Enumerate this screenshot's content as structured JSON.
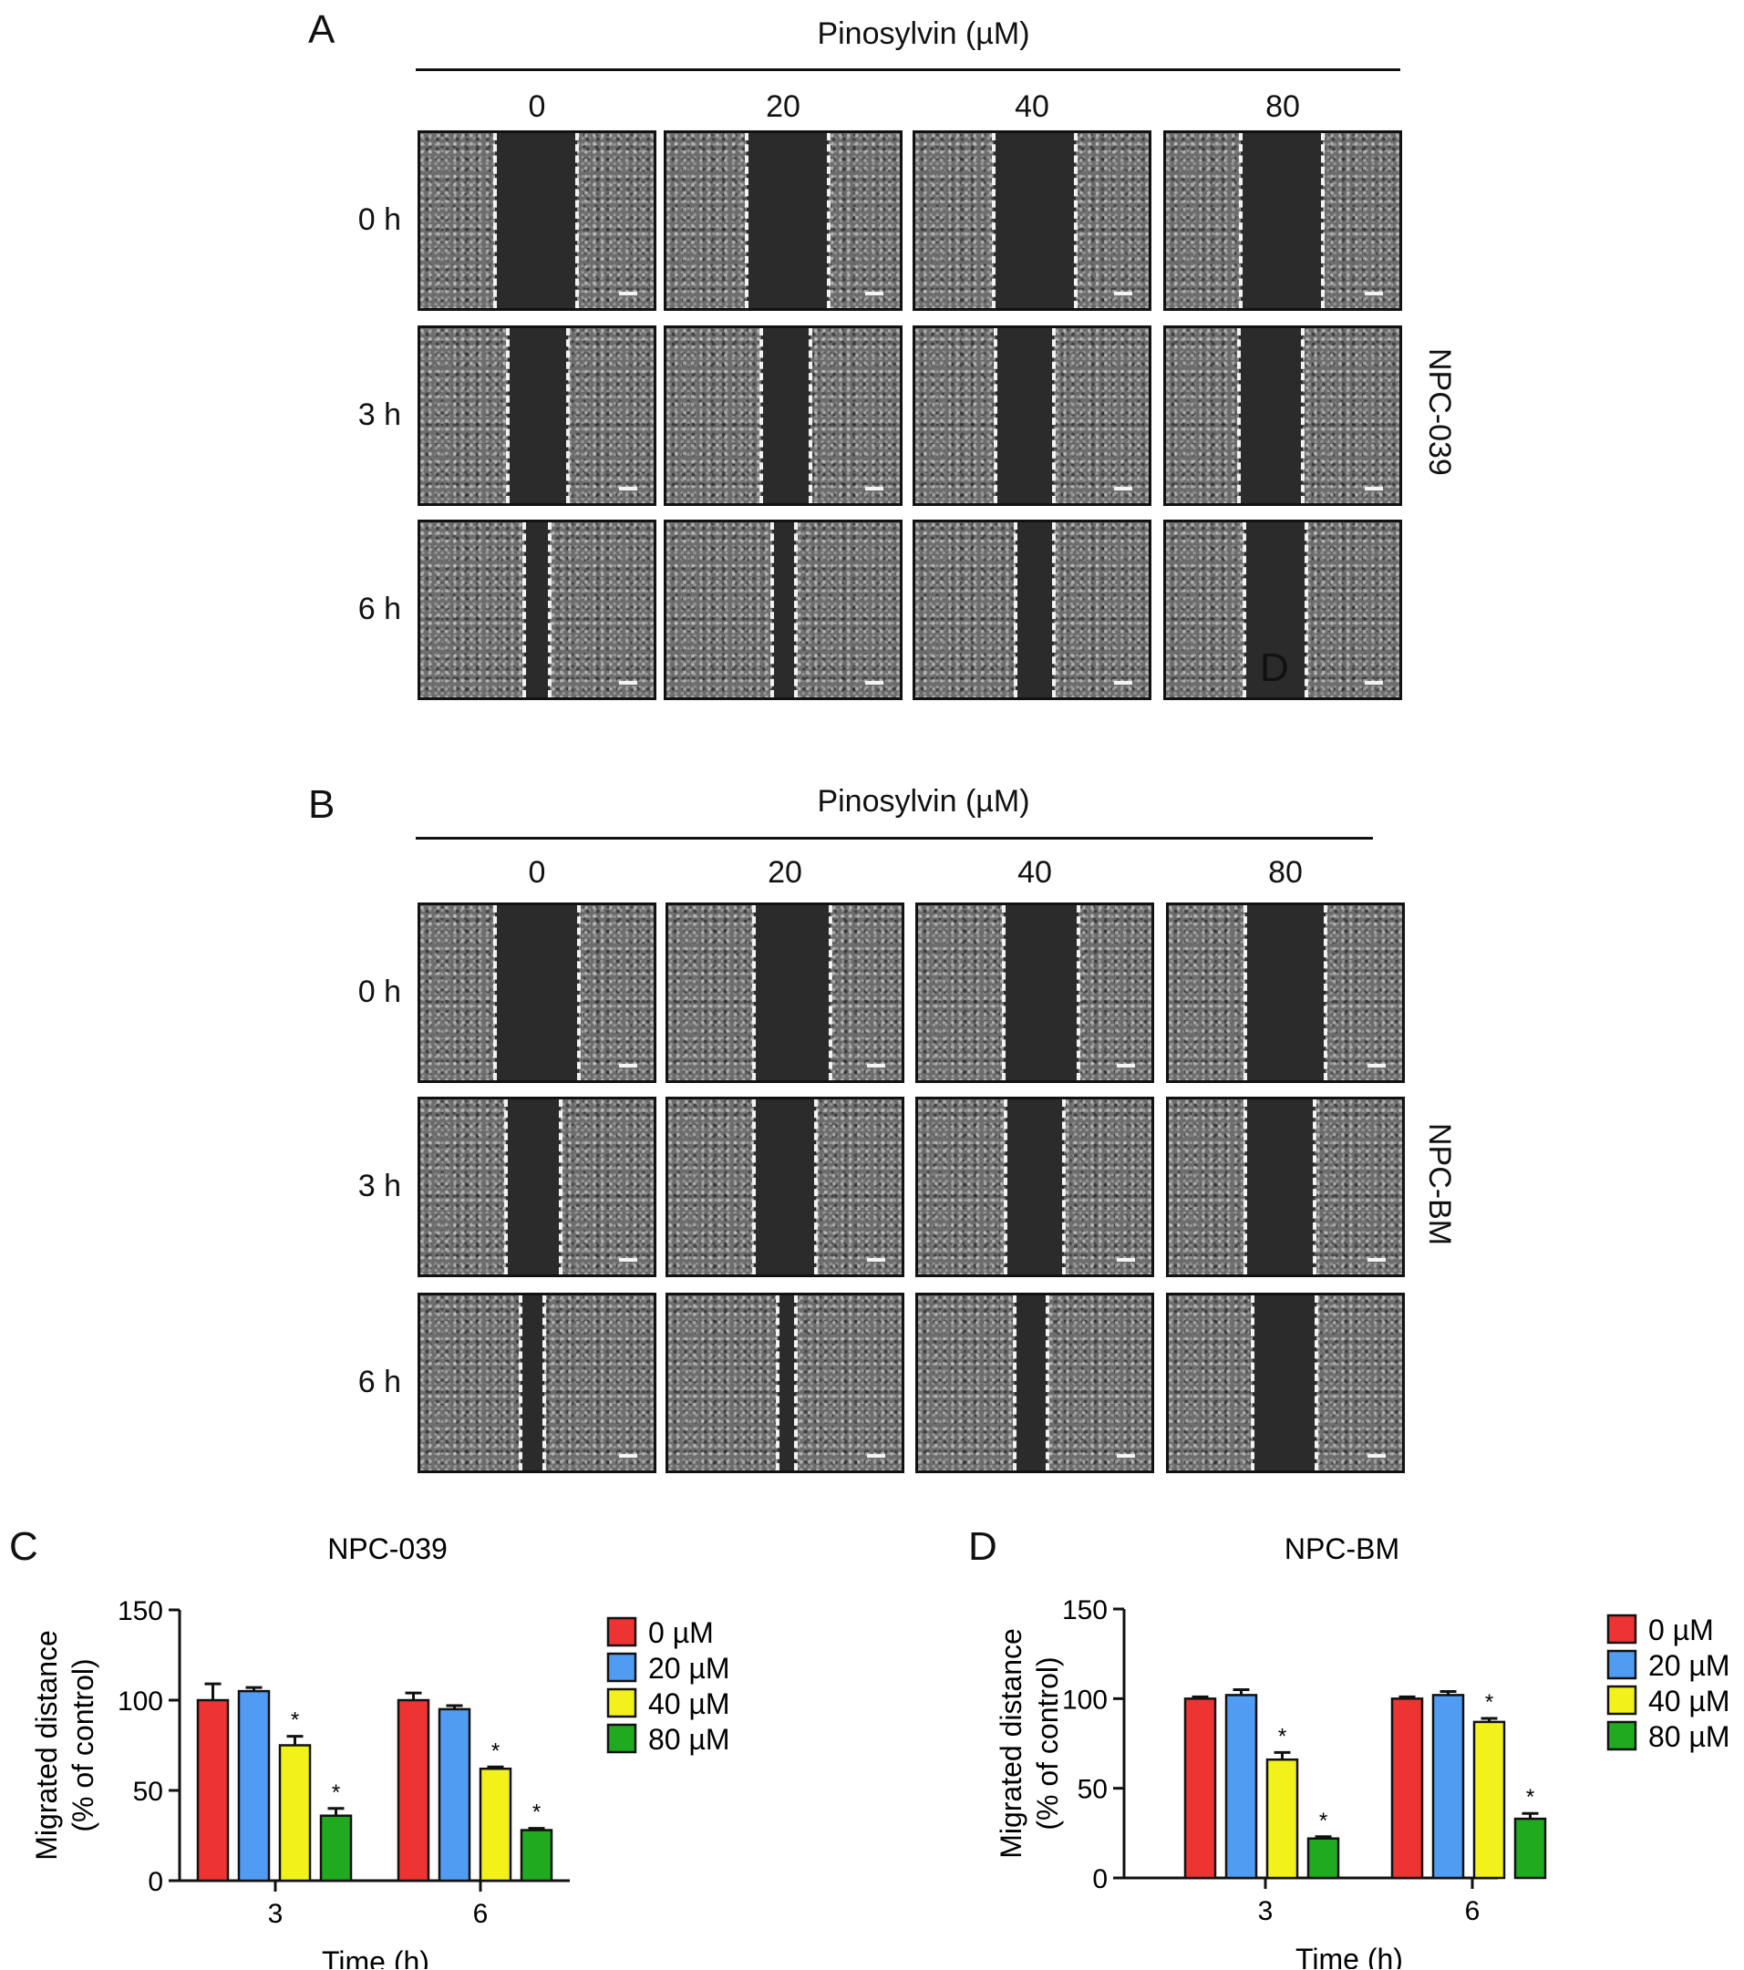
{
  "panels": {
    "A": {
      "letter": "A",
      "title": "Pinosylvin (µM)",
      "concentrations": [
        "0",
        "20",
        "40",
        "80"
      ],
      "rows": [
        "0 h",
        "3 h",
        "6 h"
      ],
      "side_label": "NPC-039",
      "stray_label": "D"
    },
    "B": {
      "letter": "B",
      "title": "Pinosylvin (µM)",
      "concentrations": [
        "0",
        "20",
        "40",
        "80"
      ],
      "rows": [
        "0 h",
        "3 h",
        "6 h"
      ],
      "side_label": "NPC-BM"
    },
    "C": {
      "letter": "C"
    },
    "D": {
      "letter": "D"
    }
  },
  "chart_data": [
    {
      "type": "bar",
      "title": "NPC-039",
      "xlabel": "Time (h)",
      "ylabel": "Migrated distance\n(% of control)",
      "ylim": [
        0,
        150
      ],
      "yticks": [
        0,
        50,
        100,
        150
      ],
      "categories": [
        "3",
        "6"
      ],
      "series": [
        {
          "name": "0 µM",
          "color": "#ee3333",
          "values": [
            100,
            100
          ],
          "errors": [
            9,
            4
          ],
          "significant": [
            false,
            false
          ]
        },
        {
          "name": "20 µM",
          "color": "#4f9cf2",
          "values": [
            105,
            95
          ],
          "errors": [
            2,
            2
          ],
          "significant": [
            false,
            false
          ]
        },
        {
          "name": "40 µM",
          "color": "#f2f21a",
          "values": [
            75,
            62
          ],
          "errors": [
            5,
            1
          ],
          "significant": [
            true,
            true
          ]
        },
        {
          "name": "80 µM",
          "color": "#1faa1f",
          "values": [
            36,
            28
          ],
          "errors": [
            4,
            1
          ],
          "significant": [
            true,
            true
          ]
        }
      ],
      "significance_marker": "*",
      "legend": "right"
    },
    {
      "type": "bar",
      "title": "NPC-BM",
      "xlabel": "Time (h)",
      "ylabel": "Migrated distance\n(% of control)",
      "ylim": [
        0,
        150
      ],
      "yticks": [
        0,
        50,
        100,
        150
      ],
      "categories": [
        "3",
        "6"
      ],
      "series": [
        {
          "name": "0 µM",
          "color": "#ee3333",
          "values": [
            100,
            100
          ],
          "errors": [
            1,
            1
          ],
          "significant": [
            false,
            false
          ]
        },
        {
          "name": "20 µM",
          "color": "#4f9cf2",
          "values": [
            102,
            102
          ],
          "errors": [
            3,
            2
          ],
          "significant": [
            false,
            false
          ]
        },
        {
          "name": "40 µM",
          "color": "#f2f21a",
          "values": [
            66,
            87
          ],
          "errors": [
            4,
            2
          ],
          "significant": [
            true,
            true
          ]
        },
        {
          "name": "80 µM",
          "color": "#1faa1f",
          "values": [
            22,
            33
          ],
          "errors": [
            1,
            3
          ],
          "significant": [
            true,
            true
          ]
        }
      ],
      "significance_marker": "*",
      "legend": "right"
    }
  ]
}
